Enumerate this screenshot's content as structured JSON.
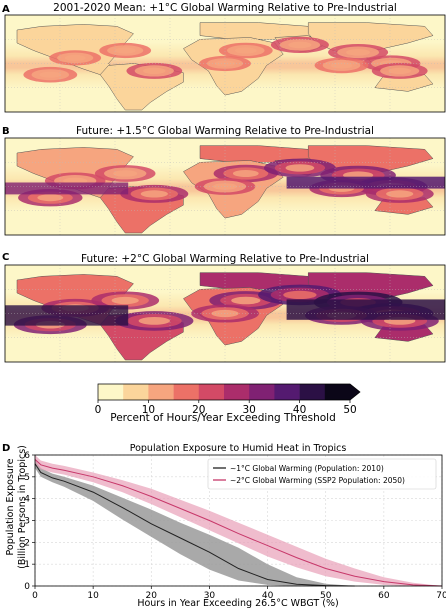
{
  "maps": [
    {
      "letter": "A",
      "title": "2001-2020 Mean: +1°C Global Warming Relative to Pre-Industrial",
      "intensity": 0.35
    },
    {
      "letter": "B",
      "title": "Future: +1.5°C Global Warming Relative to Pre-Industrial",
      "intensity": 0.65
    },
    {
      "letter": "C",
      "title": "Future: +2°C Global Warming Relative to Pre-Industrial",
      "intensity": 0.9
    }
  ],
  "colorbar": {
    "label": "Percent of Hours/Year Exceeding Threshold",
    "ticks": [
      "0",
      "10",
      "20",
      "30",
      "40",
      "50"
    ],
    "colors": [
      "#fdf7c8",
      "#fbd59b",
      "#f6a57f",
      "#ec7167",
      "#d34a66",
      "#ab2d6b",
      "#802173",
      "#541a70",
      "#2b1045",
      "#0b0618"
    ]
  },
  "chart_data": {
    "type": "line",
    "letter": "D",
    "title": "Population Exposure to Humid Heat in Tropics",
    "xlabel": "Hours in Year Exceeding 26.5°C WBGT (%)",
    "ylabel": [
      "Population Exposure",
      "(Billion Persons in Tropics)"
    ],
    "xlim": [
      0,
      70
    ],
    "ylim": [
      0,
      6
    ],
    "xticks": [
      "0",
      "10",
      "20",
      "30",
      "40",
      "50",
      "60",
      "70"
    ],
    "yticks": [
      "0",
      "1",
      "2",
      "3",
      "4",
      "5",
      "6"
    ],
    "grid": true,
    "legend_position": "top-right",
    "series": [
      {
        "name": "~1°C Global Warming (Population: 2010)",
        "color": "#222222",
        "band_color": "#9a9a9a",
        "x": [
          0,
          1,
          3,
          5,
          10,
          15,
          20,
          25,
          30,
          35,
          40,
          45,
          50,
          55
        ],
        "y": [
          5.6,
          5.2,
          4.95,
          4.8,
          4.3,
          3.6,
          2.85,
          2.2,
          1.55,
          0.8,
          0.3,
          0.08,
          0.02,
          0
        ],
        "lower": [
          5.4,
          5.0,
          4.75,
          4.55,
          3.9,
          3.05,
          2.25,
          1.45,
          0.75,
          0.25,
          0.05,
          0.0,
          0.0,
          0
        ],
        "upper": [
          5.8,
          5.4,
          5.15,
          5.0,
          4.6,
          4.05,
          3.5,
          2.9,
          2.35,
          1.75,
          1.0,
          0.4,
          0.1,
          0
        ]
      },
      {
        "name": "~2°C Global Warming (SSP2 Population: 2050)",
        "color": "#c7386a",
        "band_color": "#e8a0b8",
        "x": [
          0,
          1,
          3,
          5,
          10,
          15,
          20,
          25,
          30,
          35,
          40,
          45,
          50,
          55,
          60,
          65,
          70
        ],
        "y": [
          5.8,
          5.55,
          5.4,
          5.3,
          5.0,
          4.6,
          4.1,
          3.55,
          3.0,
          2.4,
          1.85,
          1.3,
          0.8,
          0.45,
          0.2,
          0.05,
          0
        ],
        "lower": [
          5.6,
          5.35,
          5.2,
          5.1,
          4.75,
          4.3,
          3.75,
          3.15,
          2.55,
          1.95,
          1.35,
          0.85,
          0.45,
          0.2,
          0.05,
          0.0,
          0
        ],
        "upper": [
          6.0,
          5.75,
          5.6,
          5.5,
          5.2,
          4.85,
          4.45,
          3.95,
          3.45,
          2.9,
          2.35,
          1.8,
          1.25,
          0.8,
          0.4,
          0.15,
          0
        ]
      }
    ]
  }
}
